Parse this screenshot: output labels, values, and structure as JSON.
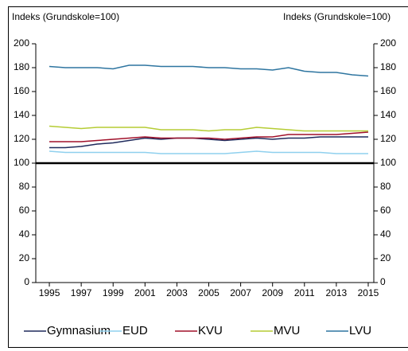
{
  "chart_data": {
    "type": "line",
    "y_label": "Indeks (Grundskole=100)",
    "y2_label": "Indeks (Grundskole=100)",
    "x": [
      1995,
      1996,
      1997,
      1998,
      1999,
      2000,
      2001,
      2002,
      2003,
      2004,
      2005,
      2006,
      2007,
      2008,
      2009,
      2010,
      2011,
      2012,
      2013,
      2014,
      2015
    ],
    "xlim": [
      1994.15,
      2015.35
    ],
    "xticks": [
      1995,
      1997,
      1999,
      2001,
      2003,
      2005,
      2007,
      2009,
      2011,
      2013,
      2015
    ],
    "ylim": [
      0,
      200
    ],
    "yticks": [
      0,
      20,
      40,
      60,
      80,
      100,
      120,
      140,
      160,
      180,
      200
    ],
    "y2lim": [
      0,
      200
    ],
    "y2ticks": [
      0,
      20,
      40,
      60,
      80,
      100,
      120,
      140,
      160,
      180,
      200
    ],
    "reference_line": 100,
    "legend": "bottom",
    "series": [
      {
        "name": "Gymnasium",
        "color": "#1f2a5c",
        "values": [
          113,
          113,
          114,
          116,
          117,
          119,
          121,
          120,
          121,
          121,
          120,
          119,
          120,
          121,
          120,
          121,
          121,
          122,
          122,
          122,
          122
        ]
      },
      {
        "name": "EUD",
        "color": "#8fd0ee",
        "values": [
          110,
          109,
          109,
          109,
          109,
          109,
          109,
          108,
          108,
          108,
          108,
          108,
          109,
          110,
          109,
          109,
          109,
          109,
          108,
          108,
          108
        ]
      },
      {
        "name": "KVU",
        "color": "#a0102a",
        "values": [
          118,
          118,
          118,
          119,
          120,
          121,
          122,
          121,
          121,
          121,
          121,
          120,
          121,
          122,
          122,
          124,
          124,
          124,
          124,
          125,
          126
        ]
      },
      {
        "name": "MVU",
        "color": "#b5cc34",
        "values": [
          131,
          130,
          129,
          130,
          130,
          130,
          130,
          128,
          128,
          128,
          127,
          128,
          128,
          130,
          129,
          128,
          127,
          127,
          127,
          127,
          127
        ]
      },
      {
        "name": "LVU",
        "color": "#2e75a0",
        "values": [
          181,
          180,
          180,
          180,
          179,
          182,
          182,
          181,
          181,
          181,
          180,
          180,
          179,
          179,
          178,
          180,
          177,
          176,
          176,
          174,
          173
        ]
      }
    ]
  }
}
